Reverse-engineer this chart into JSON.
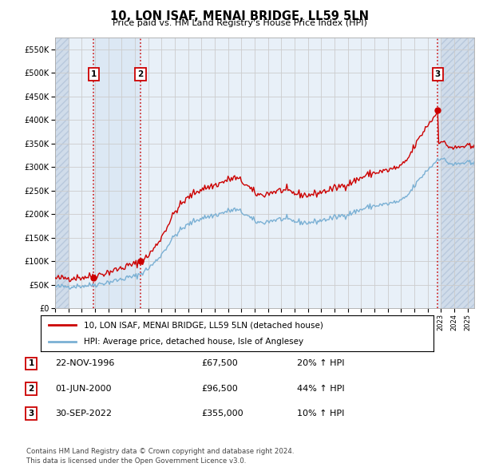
{
  "title": "10, LON ISAF, MENAI BRIDGE, LL59 5LN",
  "subtitle": "Price paid vs. HM Land Registry's House Price Index (HPI)",
  "legend_line1": "10, LON ISAF, MENAI BRIDGE, LL59 5LN (detached house)",
  "legend_line2": "HPI: Average price, detached house, Isle of Anglesey",
  "transactions": [
    {
      "num": 1,
      "date": "22-NOV-1996",
      "price": 67500,
      "pct": "20%",
      "dir": "↑",
      "x_year": 1996.89
    },
    {
      "num": 2,
      "date": "01-JUN-2000",
      "price": 96500,
      "pct": "44%",
      "dir": "↑",
      "x_year": 2000.42
    },
    {
      "num": 3,
      "date": "30-SEP-2022",
      "price": 355000,
      "pct": "10%",
      "dir": "↑",
      "x_year": 2022.75
    }
  ],
  "footer_line1": "Contains HM Land Registry data © Crown copyright and database right 2024.",
  "footer_line2": "This data is licensed under the Open Government Licence v3.0.",
  "hpi_color": "#7ab0d4",
  "price_color": "#cc0000",
  "ylim": [
    0,
    575000
  ],
  "xlim_start": 1994.0,
  "xlim_end": 2025.5,
  "yticks": [
    0,
    50000,
    100000,
    150000,
    200000,
    250000,
    300000,
    350000,
    400000,
    450000,
    500000,
    550000
  ],
  "ytick_labels": [
    "£0",
    "£50K",
    "£100K",
    "£150K",
    "£200K",
    "£250K",
    "£300K",
    "£350K",
    "£400K",
    "£450K",
    "£500K",
    "£550K"
  ],
  "xticks": [
    1994,
    1995,
    1996,
    1997,
    1998,
    1999,
    2000,
    2001,
    2002,
    2003,
    2004,
    2005,
    2006,
    2007,
    2008,
    2009,
    2010,
    2011,
    2012,
    2013,
    2014,
    2015,
    2016,
    2017,
    2018,
    2019,
    2020,
    2021,
    2022,
    2023,
    2024,
    2025
  ],
  "grid_color": "#cccccc",
  "plot_bg": "#e8f0f8",
  "hatch_bg": "#d0dcea",
  "shade_between_1_2_color": "#dce8f4",
  "shade_after_3_color": "#dce8f4"
}
